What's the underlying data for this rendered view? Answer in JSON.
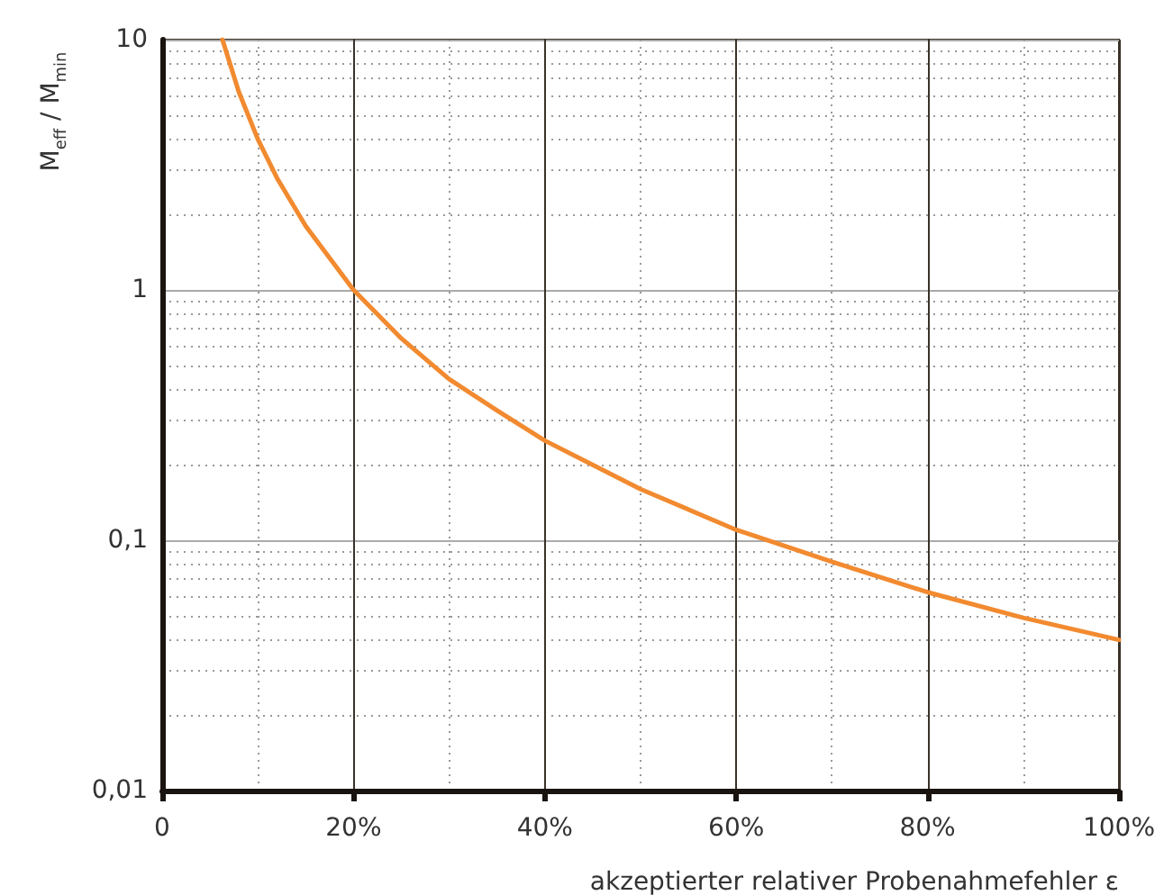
{
  "chart_data": {
    "type": "line",
    "xlabel": "akzeptierter relativer Probenahmefehler ε",
    "ylabel": "M$_{eff}$ / M$_{min}$",
    "x": [
      6.3,
      8,
      10,
      12,
      15,
      20,
      25,
      30,
      35,
      40,
      50,
      60,
      70,
      80,
      90,
      100
    ],
    "series": [
      {
        "color": "#f28a30",
        "values": [
          10,
          6.2,
          4,
          2.8,
          1.8,
          1,
          0.64,
          0.44,
          0.33,
          0.25,
          0.16,
          0.11,
          0.082,
          0.062,
          0.049,
          0.04
        ]
      }
    ],
    "xlim": [
      0,
      100
    ],
    "xticks": [
      0,
      {
        "value": 20,
        "label": "20%"
      },
      {
        "value": 40,
        "label": "40%"
      },
      {
        "value": 60,
        "label": "60%"
      },
      {
        "value": 80,
        "label": "80%"
      },
      {
        "value": 100,
        "label": "100%"
      }
    ],
    "ylim": [
      0.01,
      10
    ],
    "yticks": [
      {
        "value": 0.01,
        "label": "0,01"
      },
      {
        "value": 0.1,
        "label": "0,1"
      },
      1,
      10
    ],
    "log": "y",
    "grid": true,
    "marker": "none",
    "line_style": "solid"
  }
}
